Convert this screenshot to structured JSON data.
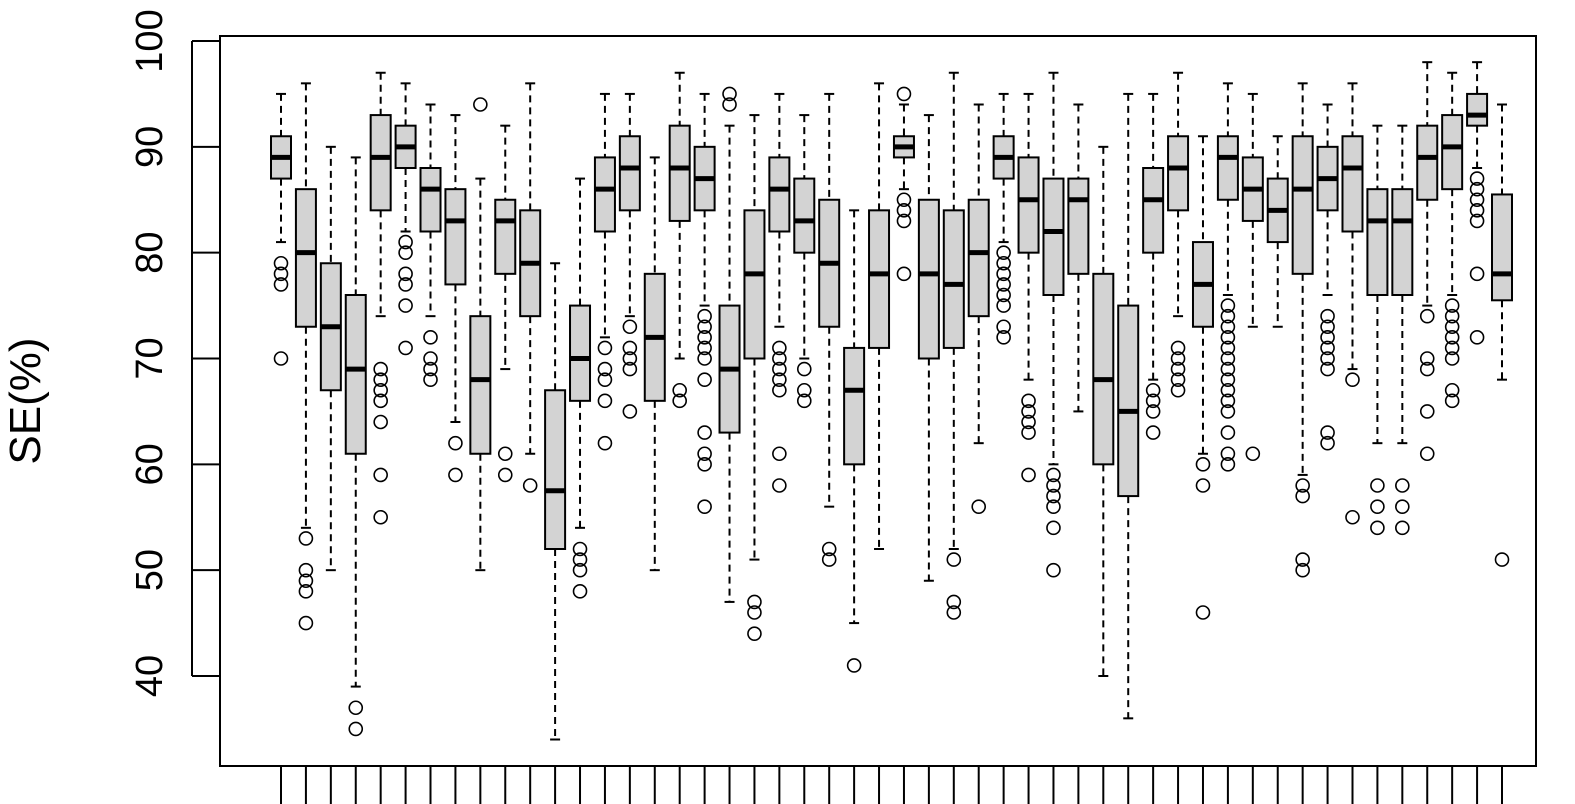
{
  "chart_data": {
    "type": "boxplot",
    "ylabel": "SE(%)",
    "ylim": [
      33,
      102
    ],
    "yticks": [
      40,
      50,
      60,
      70,
      80,
      90,
      100
    ],
    "grid": false,
    "legend": "none",
    "box_fill": "#d3d3d3",
    "box_stroke": "#000000",
    "boxes": [
      {
        "q1": 87,
        "med": 89,
        "q3": 91,
        "lo": 81,
        "hi": 95,
        "out": [
          70,
          77,
          78,
          79
        ]
      },
      {
        "q1": 73,
        "med": 80,
        "q3": 86,
        "lo": 54,
        "hi": 96,
        "out": [
          45,
          48,
          49,
          50,
          53
        ]
      },
      {
        "q1": 67,
        "med": 73,
        "q3": 79,
        "lo": 50,
        "hi": 90,
        "out": []
      },
      {
        "q1": 61,
        "med": 69,
        "q3": 76,
        "lo": 39,
        "hi": 89,
        "out": [
          35,
          37
        ]
      },
      {
        "q1": 84,
        "med": 89,
        "q3": 93,
        "lo": 74,
        "hi": 97,
        "out": [
          55,
          59,
          64,
          66,
          67,
          68,
          69
        ]
      },
      {
        "q1": 88,
        "med": 90,
        "q3": 92,
        "lo": 82,
        "hi": 96,
        "out": [
          71,
          75,
          77,
          78,
          80,
          81
        ]
      },
      {
        "q1": 82,
        "med": 86,
        "q3": 88,
        "lo": 74,
        "hi": 94,
        "out": [
          68,
          69,
          70,
          72
        ]
      },
      {
        "q1": 77,
        "med": 83,
        "q3": 86,
        "lo": 64,
        "hi": 93,
        "out": [
          59,
          62
        ]
      },
      {
        "q1": 61,
        "med": 68,
        "q3": 74,
        "lo": 50,
        "hi": 87,
        "out": [
          94
        ]
      },
      {
        "q1": 78,
        "med": 83,
        "q3": 85,
        "lo": 69,
        "hi": 92,
        "out": [
          59,
          61
        ]
      },
      {
        "q1": 74,
        "med": 79,
        "q3": 84,
        "lo": 61,
        "hi": 96,
        "out": [
          58
        ]
      },
      {
        "q1": 52,
        "med": 57.5,
        "q3": 67,
        "lo": 34,
        "hi": 79,
        "out": []
      },
      {
        "q1": 66,
        "med": 70,
        "q3": 75,
        "lo": 54,
        "hi": 87,
        "out": [
          48,
          50,
          51,
          52
        ]
      },
      {
        "q1": 82,
        "med": 86,
        "q3": 89,
        "lo": 72,
        "hi": 95,
        "out": [
          62,
          66,
          68,
          69,
          71
        ]
      },
      {
        "q1": 84,
        "med": 88,
        "q3": 91,
        "lo": 74,
        "hi": 95,
        "out": [
          65,
          69,
          70,
          71,
          73
        ]
      },
      {
        "q1": 66,
        "med": 72,
        "q3": 78,
        "lo": 50,
        "hi": 89,
        "out": []
      },
      {
        "q1": 83,
        "med": 88,
        "q3": 92,
        "lo": 70,
        "hi": 97,
        "out": [
          66,
          67
        ]
      },
      {
        "q1": 84,
        "med": 87,
        "q3": 90,
        "lo": 75,
        "hi": 95,
        "out": [
          56,
          60,
          61,
          63,
          68,
          70,
          71,
          72,
          73,
          74
        ]
      },
      {
        "q1": 63,
        "med": 69,
        "q3": 75,
        "lo": 47,
        "hi": 92,
        "out": [
          94,
          95
        ]
      },
      {
        "q1": 70,
        "med": 78,
        "q3": 84,
        "lo": 51,
        "hi": 93,
        "out": [
          44,
          46,
          47
        ]
      },
      {
        "q1": 82,
        "med": 86,
        "q3": 89,
        "lo": 73,
        "hi": 95,
        "out": [
          58,
          61,
          67,
          68,
          69,
          70,
          71
        ]
      },
      {
        "q1": 80,
        "med": 83,
        "q3": 87,
        "lo": 70,
        "hi": 93,
        "out": [
          66,
          67,
          69
        ]
      },
      {
        "q1": 73,
        "med": 79,
        "q3": 85,
        "lo": 56,
        "hi": 95,
        "out": [
          51,
          52
        ]
      },
      {
        "q1": 60,
        "med": 67,
        "q3": 71,
        "lo": 45,
        "hi": 84,
        "out": [
          41
        ]
      },
      {
        "q1": 71,
        "med": 78,
        "q3": 84,
        "lo": 52,
        "hi": 96,
        "out": []
      },
      {
        "q1": 89,
        "med": 90,
        "q3": 91,
        "lo": 86,
        "hi": 94,
        "out": [
          78,
          83,
          84,
          85,
          95
        ]
      },
      {
        "q1": 70,
        "med": 78,
        "q3": 85,
        "lo": 49,
        "hi": 93,
        "out": []
      },
      {
        "q1": 71,
        "med": 77,
        "q3": 84,
        "lo": 52,
        "hi": 97,
        "out": [
          46,
          47,
          51
        ]
      },
      {
        "q1": 74,
        "med": 80,
        "q3": 85,
        "lo": 62,
        "hi": 94,
        "out": [
          56
        ]
      },
      {
        "q1": 87,
        "med": 89,
        "q3": 91,
        "lo": 81,
        "hi": 95,
        "out": [
          72,
          73,
          75,
          76,
          77,
          78,
          79,
          80
        ]
      },
      {
        "q1": 80,
        "med": 85,
        "q3": 89,
        "lo": 68,
        "hi": 95,
        "out": [
          59,
          63,
          64,
          65,
          66
        ]
      },
      {
        "q1": 76,
        "med": 82,
        "q3": 87,
        "lo": 60,
        "hi": 97,
        "out": [
          50,
          54,
          56,
          57,
          58,
          59
        ]
      },
      {
        "q1": 78,
        "med": 85,
        "q3": 87,
        "lo": 65,
        "hi": 94,
        "out": []
      },
      {
        "q1": 60,
        "med": 68,
        "q3": 78,
        "lo": 40,
        "hi": 90,
        "out": []
      },
      {
        "q1": 57,
        "med": 65,
        "q3": 75,
        "lo": 36,
        "hi": 95,
        "out": []
      },
      {
        "q1": 80,
        "med": 85,
        "q3": 88,
        "lo": 68,
        "hi": 95,
        "out": [
          63,
          65,
          66,
          67
        ]
      },
      {
        "q1": 84,
        "med": 88,
        "q3": 91,
        "lo": 74,
        "hi": 97,
        "out": [
          67,
          68,
          69,
          70,
          71
        ]
      },
      {
        "q1": 73,
        "med": 77,
        "q3": 81,
        "lo": 61,
        "hi": 91,
        "out": [
          46,
          58,
          60
        ]
      },
      {
        "q1": 85,
        "med": 89,
        "q3": 91,
        "lo": 76,
        "hi": 96,
        "out": [
          60,
          61,
          63,
          65,
          66,
          67,
          68,
          69,
          70,
          71,
          72,
          73,
          74,
          75
        ]
      },
      {
        "q1": 83,
        "med": 86,
        "q3": 89,
        "lo": 73,
        "hi": 95,
        "out": [
          61
        ]
      },
      {
        "q1": 81,
        "med": 84,
        "q3": 87,
        "lo": 73,
        "hi": 91,
        "out": []
      },
      {
        "q1": 78,
        "med": 86,
        "q3": 91,
        "lo": 59,
        "hi": 96,
        "out": [
          50,
          51,
          57,
          58
        ]
      },
      {
        "q1": 84,
        "med": 87,
        "q3": 90,
        "lo": 76,
        "hi": 94,
        "out": [
          62,
          63,
          69,
          70,
          71,
          72,
          73,
          74
        ]
      },
      {
        "q1": 82,
        "med": 88,
        "q3": 91,
        "lo": 69,
        "hi": 96,
        "out": [
          55,
          68
        ]
      },
      {
        "q1": 76,
        "med": 83,
        "q3": 86,
        "lo": 62,
        "hi": 92,
        "out": [
          54,
          56,
          58
        ]
      },
      {
        "q1": 76,
        "med": 83,
        "q3": 86,
        "lo": 62,
        "hi": 92,
        "out": [
          54,
          56,
          58
        ]
      },
      {
        "q1": 85,
        "med": 89,
        "q3": 92,
        "lo": 75,
        "hi": 98,
        "out": [
          61,
          65,
          69,
          70,
          74
        ]
      },
      {
        "q1": 86,
        "med": 90,
        "q3": 93,
        "lo": 76,
        "hi": 97,
        "out": [
          66,
          67,
          70,
          71,
          72,
          73,
          74,
          75
        ]
      },
      {
        "q1": 92,
        "med": 93,
        "q3": 95,
        "lo": 88,
        "hi": 98,
        "out": [
          72,
          78,
          83,
          84,
          85,
          86,
          87
        ]
      },
      {
        "q1": 75.5,
        "med": 78,
        "q3": 85.5,
        "lo": 68,
        "hi": 94,
        "out": [
          51
        ]
      }
    ]
  }
}
